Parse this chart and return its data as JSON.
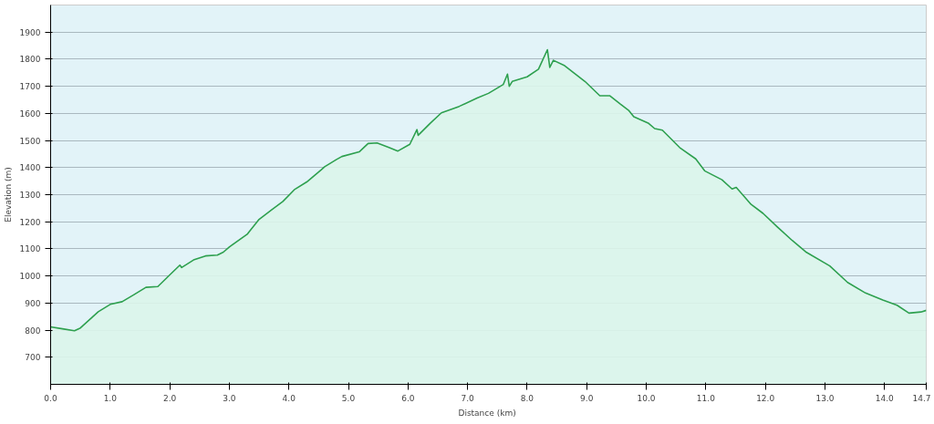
{
  "chart_data": {
    "type": "area",
    "xlabel": "Distance  (km)",
    "ylabel": "Elevation (m)",
    "xlim": [
      0,
      14.7
    ],
    "ylim": [
      600,
      2000
    ],
    "xticks": [
      {
        "value": 0,
        "label": "0.0"
      },
      {
        "value": 1,
        "label": "1.0"
      },
      {
        "value": 2,
        "label": "2.0"
      },
      {
        "value": 3,
        "label": "3.0"
      },
      {
        "value": 4,
        "label": "4.0"
      },
      {
        "value": 5,
        "label": "5.0"
      },
      {
        "value": 6,
        "label": "6.0"
      },
      {
        "value": 7,
        "label": "7.0"
      },
      {
        "value": 8,
        "label": "8.0"
      },
      {
        "value": 9,
        "label": "9.0"
      },
      {
        "value": 10,
        "label": "10.0"
      },
      {
        "value": 11,
        "label": "11.0"
      },
      {
        "value": 12,
        "label": "12.0"
      },
      {
        "value": 13,
        "label": "13.0"
      },
      {
        "value": 14,
        "label": "14.0"
      },
      14.7
    ],
    "yticks": [
      700,
      800,
      900,
      1000,
      1100,
      1200,
      1300,
      1400,
      1500,
      1600,
      1700,
      1800,
      1900
    ],
    "grid": "y",
    "x": [
      0,
      0.2,
      0.4,
      0.5,
      0.8,
      1.0,
      1.2,
      1.4,
      1.6,
      1.8,
      2.0,
      2.17,
      2.2,
      2.4,
      2.6,
      2.8,
      2.9,
      3.0,
      3.3,
      3.5,
      3.7,
      3.9,
      4.1,
      4.3,
      4.54,
      4.6,
      4.8,
      4.89,
      5.18,
      5.33,
      5.48,
      5.68,
      5.83,
      6.03,
      6.15,
      6.17,
      6.37,
      6.56,
      6.86,
      7.16,
      7.35,
      7.6,
      7.67,
      7.7,
      7.75,
      8.0,
      8.19,
      8.34,
      8.38,
      8.44,
      8.63,
      8.97,
      9.22,
      9.39,
      9.56,
      9.71,
      9.79,
      10.04,
      10.14,
      10.27,
      10.56,
      10.83,
      10.98,
      11.27,
      11.44,
      11.51,
      11.76,
      11.96,
      12.2,
      12.45,
      12.69,
      13.08,
      13.38,
      13.68,
      13.97,
      14.21,
      14.41,
      14.61,
      14.7
    ],
    "series": [
      {
        "color": "#2ea04f",
        "values": [
          812,
          805,
          798,
          808,
          868,
          895,
          905,
          931,
          958,
          961,
          1004,
          1040,
          1031,
          1059,
          1074,
          1077,
          1088,
          1107,
          1154,
          1209,
          1242,
          1275,
          1320,
          1347,
          1391,
          1403,
          1430,
          1441,
          1458,
          1489,
          1491,
          1474,
          1461,
          1486,
          1540,
          1519,
          1563,
          1602,
          1626,
          1657,
          1674,
          1707,
          1745,
          1700,
          1718,
          1735,
          1763,
          1835,
          1770,
          1796,
          1776,
          1718,
          1665,
          1665,
          1635,
          1610,
          1588,
          1563,
          1544,
          1538,
          1474,
          1432,
          1388,
          1355,
          1321,
          1327,
          1264,
          1231,
          1181,
          1131,
          1087,
          1037,
          976,
          937,
          911,
          892,
          863,
          867,
          873
        ]
      }
    ]
  }
}
